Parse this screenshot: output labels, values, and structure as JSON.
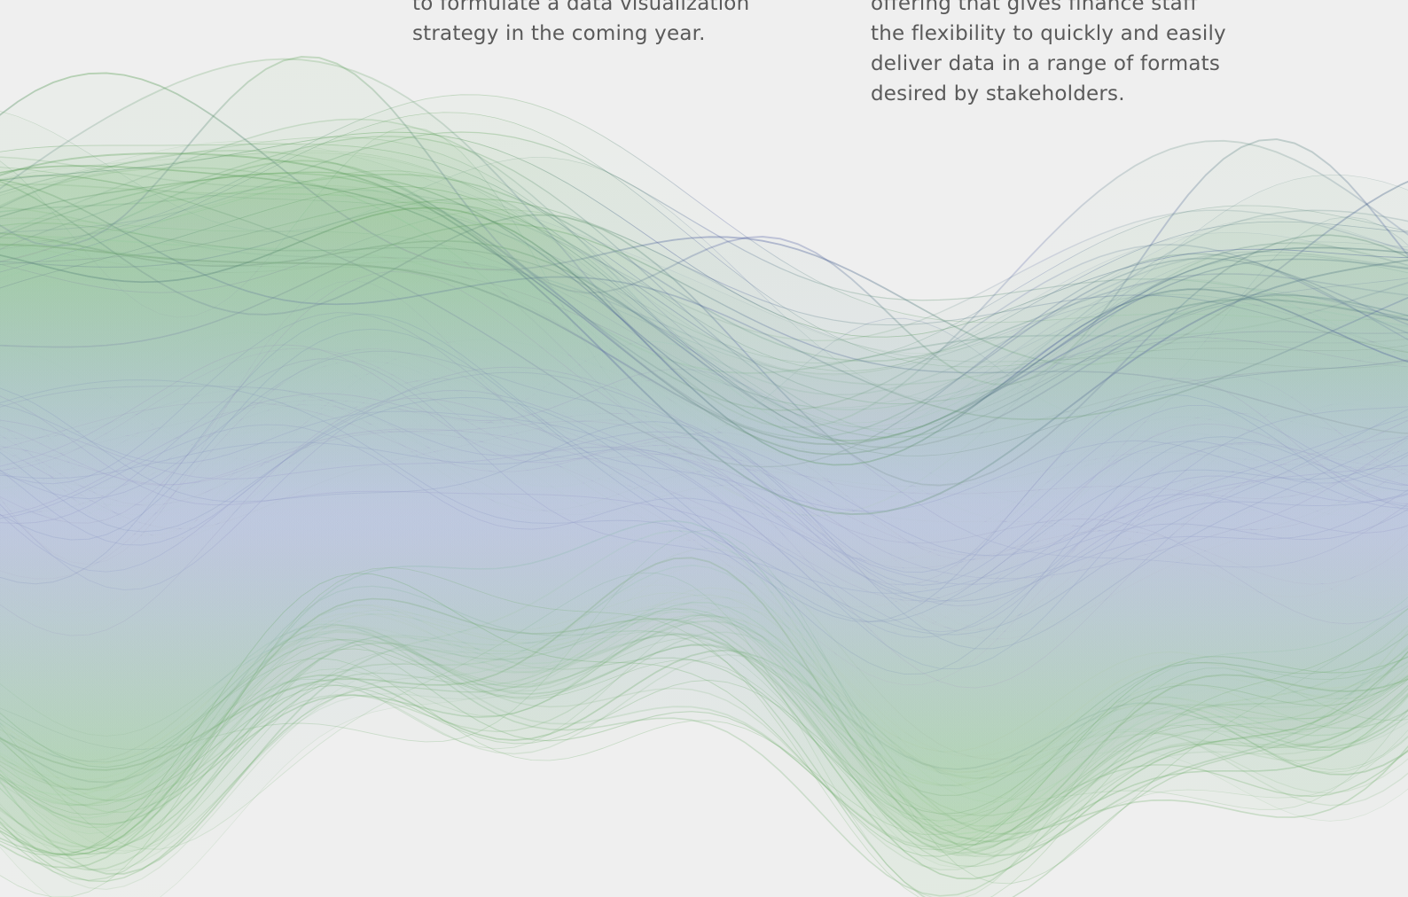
{
  "columns": [
    {
      "lines": [
        "to formulate a data visualization",
        "strategy in the coming year."
      ]
    },
    {
      "lines": [
        "offering that gives finance staff",
        "the flexibility to quickly and easily",
        "deliver data in a range of formats",
        "desired by stakeholders."
      ]
    }
  ]
}
